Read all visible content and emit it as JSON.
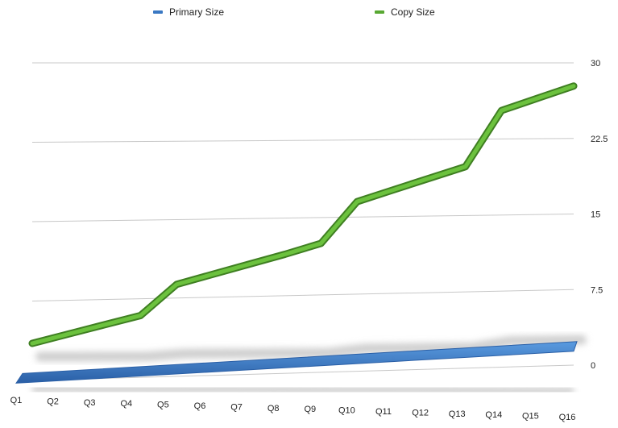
{
  "chart_data": {
    "type": "line",
    "title": "",
    "xlabel": "",
    "ylabel": "",
    "categories": [
      "Q1",
      "Q2",
      "Q3",
      "Q4",
      "Q5",
      "Q6",
      "Q7",
      "Q8",
      "Q9",
      "Q10",
      "Q11",
      "Q12",
      "Q13",
      "Q14",
      "Q15",
      "Q16"
    ],
    "ylim": [
      0,
      30
    ],
    "yticks": [
      "0",
      "7.5",
      "15",
      "22.5",
      "30"
    ],
    "grid": true,
    "legend_position": "top",
    "series": [
      {
        "name": "Primary Size",
        "color": "#3a78c3",
        "values": [
          0.2,
          0.3,
          0.4,
          0.5,
          0.6,
          0.7,
          0.8,
          0.9,
          1.0,
          1.1,
          1.2,
          1.3,
          1.4,
          1.5,
          1.6,
          1.7
        ]
      },
      {
        "name": "Copy Size",
        "color": "#58a832",
        "values": [
          3.5,
          4.3,
          5.1,
          5.9,
          8.8,
          9.7,
          10.6,
          11.5,
          12.5,
          16.5,
          17.6,
          18.7,
          19.8,
          25.3,
          26.5,
          27.7
        ]
      }
    ]
  }
}
